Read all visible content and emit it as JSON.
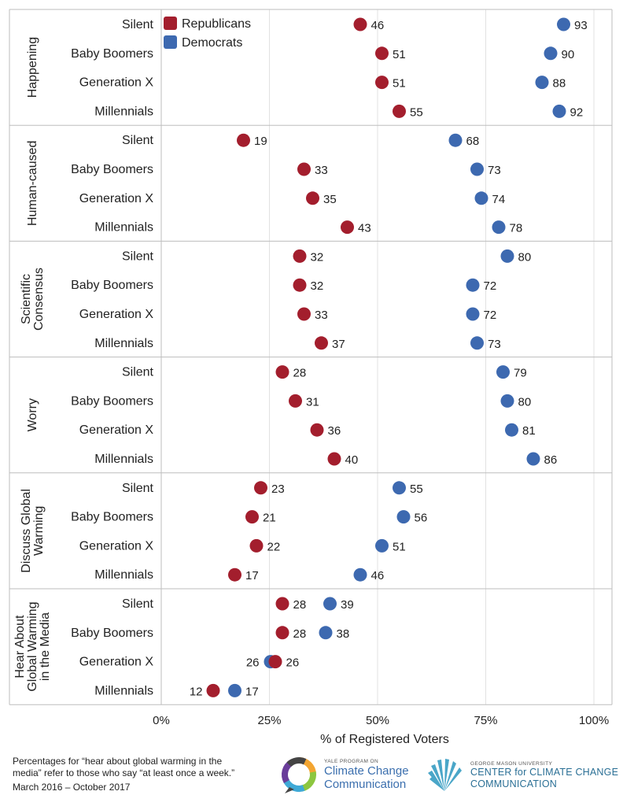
{
  "chart_data": {
    "type": "scatter",
    "subtype": "dot-plot",
    "xlabel": "% of Registered Voters",
    "xlim": [
      0,
      100
    ],
    "x_ticks": [
      "0%",
      "25%",
      "50%",
      "75%",
      "100%"
    ],
    "grid": "vertical",
    "legend": {
      "placement": "top-left",
      "items": [
        {
          "name": "Republicans",
          "color": "#a31e2d"
        },
        {
          "name": "Democrats",
          "color": "#3d69b0"
        }
      ]
    },
    "colors": {
      "republicans": "#a31e2d",
      "democrats": "#3d69b0"
    },
    "categories": [
      "Silent",
      "Baby Boomers",
      "Generation X",
      "Millennials"
    ],
    "panels": [
      {
        "name": "Happening",
        "republicans": [
          46,
          51,
          51,
          55
        ],
        "democrats": [
          93,
          90,
          88,
          92
        ]
      },
      {
        "name": "Human-caused",
        "republicans": [
          19,
          33,
          35,
          43
        ],
        "democrats": [
          68,
          73,
          74,
          78
        ]
      },
      {
        "name": "Scientific Consensus",
        "republicans": [
          32,
          32,
          33,
          37
        ],
        "democrats": [
          80,
          72,
          72,
          73
        ]
      },
      {
        "name": "Worry",
        "republicans": [
          28,
          31,
          36,
          40
        ],
        "democrats": [
          79,
          80,
          81,
          86
        ]
      },
      {
        "name": "Discuss Global Warming",
        "republicans": [
          23,
          21,
          22,
          17
        ],
        "democrats": [
          55,
          56,
          51,
          46
        ]
      },
      {
        "name": "Hear About Global Warming in the Media",
        "republicans": [
          28,
          28,
          26,
          12
        ],
        "democrats": [
          39,
          38,
          26,
          17
        ]
      }
    ]
  },
  "footnote": {
    "line1": "Percentages for “hear about global warming in the",
    "line2": "media” refer to those who say “at least once a week.”",
    "date_range": "March 2016 – October 2017"
  },
  "logos": {
    "yale": {
      "small": "YALE PROGRAM ON",
      "line1": "Climate Change",
      "line2": "Communication"
    },
    "gmu": {
      "small": "GEORGE MASON UNIVERSITY",
      "line1": "CENTER for CLIMATE CHANGE",
      "line2": "COMMUNICATION"
    }
  }
}
